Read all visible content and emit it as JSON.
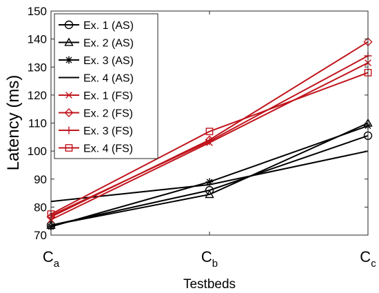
{
  "chart_data": {
    "type": "line",
    "xlabel": "Testbeds",
    "ylabel": "Latency (ms)",
    "categories": [
      {
        "base": "C",
        "sub": "a"
      },
      {
        "base": "C",
        "sub": "b"
      },
      {
        "base": "C",
        "sub": "c"
      }
    ],
    "ylim": [
      70,
      150
    ],
    "yticks": [
      70,
      80,
      90,
      100,
      110,
      120,
      130,
      140,
      150
    ],
    "grid": false,
    "legend_position": "top-left",
    "series": [
      {
        "name": "Ex. 1 (AS)",
        "color": "#000000",
        "marker": "circle",
        "values": [
          73.5,
          86,
          105.5
        ]
      },
      {
        "name": "Ex. 2 (AS)",
        "color": "#000000",
        "marker": "triangle",
        "values": [
          73.5,
          84.5,
          110
        ]
      },
      {
        "name": "Ex. 3 (AS)",
        "color": "#000000",
        "marker": "asterisk",
        "values": [
          73,
          89,
          109
        ]
      },
      {
        "name": "Ex. 4 (AS)",
        "color": "#000000",
        "marker": "none",
        "values": [
          82,
          88,
          100
        ]
      },
      {
        "name": "Ex. 1 (FS)",
        "color": "#c0141c",
        "marker": "x",
        "values": [
          75.5,
          103,
          131.5
        ]
      },
      {
        "name": "Ex. 2 (FS)",
        "color": "#c0141c",
        "marker": "diamond",
        "values": [
          76.5,
          104,
          139
        ]
      },
      {
        "name": "Ex. 3 (FS)",
        "color": "#c0141c",
        "marker": "plus",
        "values": [
          77,
          103.5,
          134
        ]
      },
      {
        "name": "Ex. 4 (FS)",
        "color": "#c0141c",
        "marker": "square",
        "values": [
          77.5,
          107,
          128
        ]
      }
    ]
  }
}
